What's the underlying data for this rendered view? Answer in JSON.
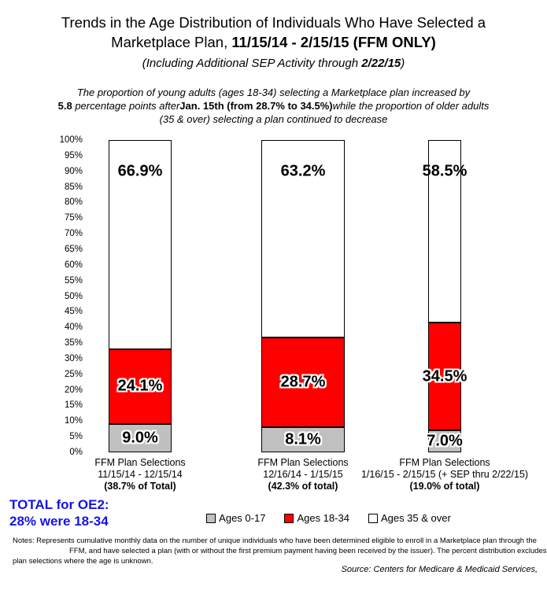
{
  "title": {
    "line1": "Trends in the Age Distribution of Individuals Who Have Selected a",
    "line2_regular": "Marketplace Plan, ",
    "line2_bold": "11/15/14 - 2/15/15 (FFM ONLY)",
    "line3_prefix": "(Including Additional SEP Activity through ",
    "line3_bold": "2/22/15",
    "line3_suffix": ")"
  },
  "subtitle": {
    "line1": "The proportion of young adults (ages 18-34) selecting a Marketplace plan increased by",
    "line2_bold1": "5.8",
    "line2_a": " percentage points after",
    "line2_bold2": "Jan. 15th (from 28.7% to 34.5%)",
    "line2_b": "while the proportion of older adults",
    "line3": "(35 & over) selecting a plan continued to decrease"
  },
  "chart_data": {
    "type": "bar",
    "subtype": "stacked-percent-column",
    "categories": [
      {
        "line1": "FFM Plan Selections",
        "line2": "11/15/14 - 12/15/14",
        "line3": "(38.7% of Total)"
      },
      {
        "line1": "FFM Plan Selections",
        "line2": "12/16/14 - 1/15/15",
        "line3": "(42.3% of total)"
      },
      {
        "line1": "FFM Plan Selections",
        "line2": "1/16/15 - 2/15/15 (+ SEP thru 2/22/15)",
        "line3": "(19.0% of total)"
      }
    ],
    "series": [
      {
        "name": "Ages 0-17",
        "color": "#C0C0C0",
        "values": [
          9.0,
          8.1,
          7.0
        ],
        "labels": [
          "9.0%",
          "8.1%",
          "7.0%"
        ]
      },
      {
        "name": "Ages 18-34",
        "color": "#FF0000",
        "values": [
          24.1,
          28.7,
          34.5
        ],
        "labels": [
          "24.1%",
          "28.7%",
          "34.5%"
        ]
      },
      {
        "name": "Ages 35 & over",
        "color": "#FFFFFF",
        "values": [
          66.9,
          63.2,
          58.5
        ],
        "labels": [
          "66.9%",
          "63.2%",
          "58.5%"
        ]
      }
    ],
    "share_of_total": [
      38.7,
      42.3,
      19.0
    ],
    "y_ticks": [
      "100%",
      "95%",
      "90%",
      "85%",
      "80%",
      "75%",
      "70%",
      "65%",
      "60%",
      "55%",
      "50%",
      "45%",
      "40%",
      "35%",
      "30%",
      "25%",
      "20%",
      "15%",
      "10%",
      "5%",
      "0%"
    ],
    "ylim": [
      0,
      100
    ],
    "grid": "off",
    "legend_position": "bottom"
  },
  "total_note": {
    "line1": "TOTAL for OE2:",
    "line2": "28% were 18-34"
  },
  "legend": {
    "items": [
      {
        "label": "Ages 0-17",
        "color": "#C0C0C0"
      },
      {
        "label": "Ages 18-34",
        "color": "#FF0000"
      },
      {
        "label": "Ages 35 & over",
        "color": "#FFFFFF"
      }
    ]
  },
  "notes": {
    "line1": "Notes:  Represents cumulative monthly data on the number of unique individuals who have been determined eligible to enroll in a Marketplace plan through the",
    "line2": "FFM, and have selected a plan (with or without the first premium payment having been received by the issuer).  The percent distribution excludes",
    "line3": "plan selections where the age is unknown."
  },
  "source": "Source:  Centers for Medicare & Medicaid Services,",
  "colors": {
    "accent_blue": "#1414E6",
    "bar_red": "#FF0000",
    "bar_gray": "#C0C0C0",
    "bar_white": "#FFFFFF",
    "border": "#000000"
  }
}
